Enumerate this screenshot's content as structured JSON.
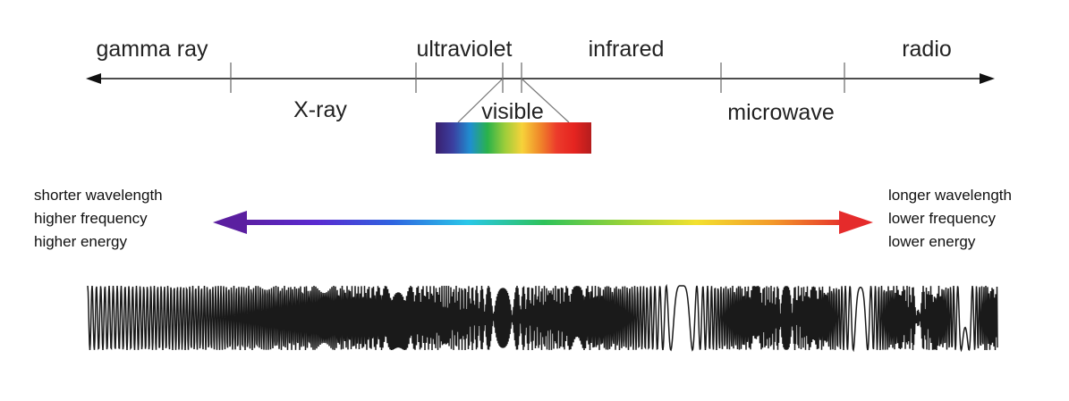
{
  "spectrum": {
    "top_labels": [
      "gamma ray",
      "ultraviolet",
      "infrared",
      "radio"
    ],
    "bottom_labels": [
      "X-ray",
      "visible",
      "microwave"
    ],
    "visible_colors": [
      "#3a1f6e",
      "#3b3fa0",
      "#1f8fd0",
      "#2ab24a",
      "#9ccd3a",
      "#f7d23a",
      "#f08a2a",
      "#ec3b2b",
      "#e52420",
      "#b51d1d"
    ]
  },
  "left_side": {
    "lines": [
      "shorter wavelength",
      "higher frequency",
      "higher energy"
    ],
    "arrow_color": "#5b1fa0"
  },
  "right_side": {
    "lines": [
      "longer wavelength",
      "lower frequency",
      "lower energy"
    ],
    "arrow_color": "#e52b2b"
  },
  "gradient_colors": [
    "#5b1fa0",
    "#5a2ad0",
    "#2f63e0",
    "#29c7e8",
    "#2ec25a",
    "#92d23a",
    "#f3e12f",
    "#f39a2a",
    "#e52b2b"
  ]
}
